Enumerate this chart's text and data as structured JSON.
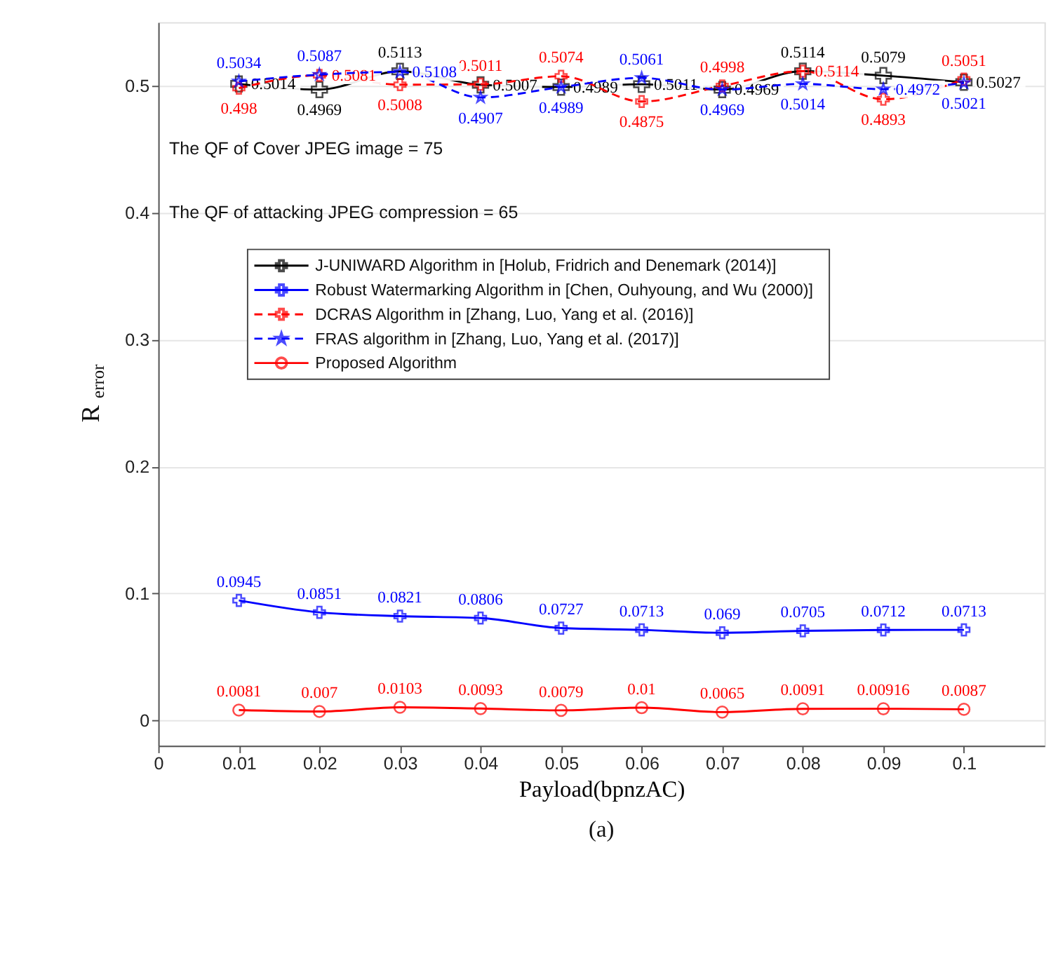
{
  "chart_data": {
    "type": "line",
    "xlabel": "Payload(bpnzAC)",
    "ylabel": "R$_{error}$",
    "x": [
      0.01,
      0.02,
      0.03,
      0.04,
      0.05,
      0.06,
      0.07,
      0.08,
      0.09,
      0.1
    ],
    "xlim": [
      0,
      0.11
    ],
    "xticks": [
      0,
      0.01,
      0.02,
      0.03,
      0.04,
      0.05,
      0.06,
      0.07,
      0.08,
      0.09,
      0.1
    ],
    "ylim": [
      -0.02,
      0.55
    ],
    "yticks": [
      0,
      0.1,
      0.2,
      0.3,
      0.4,
      0.5
    ],
    "grid": "y",
    "legend": "top left",
    "data_labels": true,
    "annotations": [
      "The QF of Cover JPEG image = 75",
      "The QF of attacking JPEG compression = 65",
      "(a)"
    ],
    "series": [
      {
        "name": "J-UNIWARD Algorithm in [Holub, Fridrich and Denemark (2014)]",
        "color": "#000000",
        "marker": "cross",
        "line_style": "solid",
        "values": [
          0.5014,
          0.4969,
          0.5113,
          0.5007,
          0.4989,
          0.5011,
          0.4969,
          0.5114,
          0.5079,
          0.5027
        ]
      },
      {
        "name": "Robust Watermarking Algorithm in [Chen, Ouhyoung, and Wu (2000)]",
        "color": "#0000ff",
        "marker": "cross",
        "line_style": "solid",
        "values": [
          0.0945,
          0.0851,
          0.0821,
          0.0806,
          0.0727,
          0.0713,
          0.069,
          0.0705,
          0.0712,
          0.0713
        ]
      },
      {
        "name": "DCRAS Algorithm in [Zhang, Luo, Yang et al. (2016)]",
        "color": "#ff0000",
        "marker": "cross",
        "line_style": "dashed",
        "values": [
          0.498,
          0.5081,
          0.5008,
          0.5011,
          0.5074,
          0.4875,
          0.4998,
          0.5114,
          0.4893,
          0.5051
        ]
      },
      {
        "name": "FRAS algorithm in [Zhang, Luo, Yang et al. (2017)]",
        "color": "#0000ff",
        "marker": "star",
        "line_style": "dashed",
        "values": [
          0.5034,
          0.5087,
          0.5108,
          0.4907,
          0.4989,
          0.5061,
          0.4969,
          0.5014,
          0.4972,
          0.5021
        ]
      },
      {
        "name": "Proposed Algorithm",
        "color": "#ff0000",
        "marker": "circle",
        "line_style": "solid",
        "values": [
          0.0081,
          0.007,
          0.0103,
          0.0093,
          0.0079,
          0.01,
          0.0065,
          0.0091,
          0.00916,
          0.0087
        ]
      }
    ]
  }
}
